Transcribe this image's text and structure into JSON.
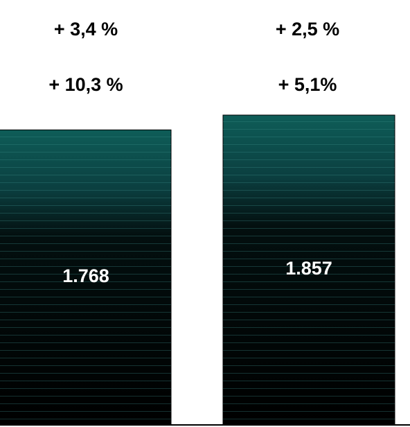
{
  "chart_data": {
    "type": "bar",
    "categories": [
      null,
      null
    ],
    "values": [
      1768,
      1857
    ],
    "value_labels": [
      "1.768",
      "1.857"
    ],
    "annotations": [
      [
        "+ 3,4 %",
        "+ 10,3 %"
      ],
      [
        "+ 2,5 %",
        "+ 5,1%"
      ]
    ],
    "color": "#0e5d58"
  }
}
